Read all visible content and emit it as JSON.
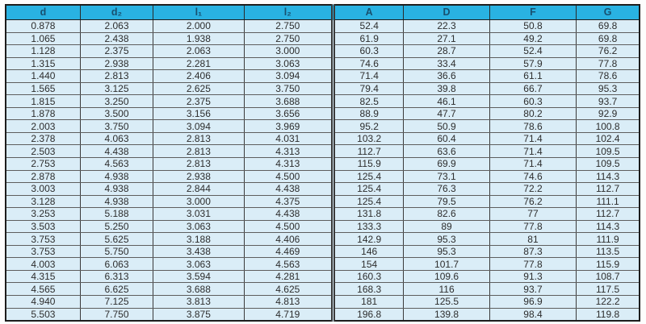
{
  "chart_data": {
    "type": "table",
    "columns": [
      "d",
      "d₂",
      "l₁",
      "l₂",
      "A",
      "D",
      "F",
      "G"
    ],
    "rows": [
      [
        "0.878",
        "2.063",
        "2.000",
        "2.750",
        "52.4",
        "22.3",
        "50.8",
        "69.8"
      ],
      [
        "1.065",
        "2.438",
        "1.938",
        "2.750",
        "61.9",
        "27.1",
        "49.2",
        "69.8"
      ],
      [
        "1.128",
        "2.375",
        "2.063",
        "3.000",
        "60.3",
        "28.7",
        "52.4",
        "76.2"
      ],
      [
        "1.315",
        "2.938",
        "2.281",
        "3.063",
        "74.6",
        "33.4",
        "57.9",
        "77.8"
      ],
      [
        "1.440",
        "2.813",
        "2.406",
        "3.094",
        "71.4",
        "36.6",
        "61.1",
        "78.6"
      ],
      [
        "1.565",
        "3.125",
        "2.625",
        "3.750",
        "79.4",
        "39.8",
        "66.7",
        "95.3"
      ],
      [
        "1.815",
        "3.250",
        "2.375",
        "3.688",
        "82.5",
        "46.1",
        "60.3",
        "93.7"
      ],
      [
        "1.878",
        "3.500",
        "3.156",
        "3.656",
        "88.9",
        "47.7",
        "80.2",
        "92.9"
      ],
      [
        "2.003",
        "3.750",
        "3.094",
        "3.969",
        "95.2",
        "50.9",
        "78.6",
        "100.8"
      ],
      [
        "2.378",
        "4.063",
        "2.813",
        "4.031",
        "103.2",
        "60.4",
        "71.4",
        "102.4"
      ],
      [
        "2.503",
        "4.438",
        "2.813",
        "4.313",
        "112.7",
        "63.6",
        "71.4",
        "109.5"
      ],
      [
        "2.753",
        "4.563",
        "2.813",
        "4.313",
        "115.9",
        "69.9",
        "71.4",
        "109.5"
      ],
      [
        "2.878",
        "4.938",
        "2.938",
        "4.500",
        "125.4",
        "73.1",
        "74.6",
        "114.3"
      ],
      [
        "3.003",
        "4.938",
        "2.844",
        "4.438",
        "125.4",
        "76.3",
        "72.2",
        "112.7"
      ],
      [
        "3.128",
        "4.938",
        "3.000",
        "4.375",
        "125.4",
        "79.5",
        "76.2",
        "111.1"
      ],
      [
        "3.253",
        "5.188",
        "3.031",
        "4.438",
        "131.8",
        "82.6",
        "77",
        "112.7"
      ],
      [
        "3.503",
        "5.250",
        "3.063",
        "4.500",
        "133.3",
        "89",
        "77.8",
        "114.3"
      ],
      [
        "3.753",
        "5.625",
        "3.188",
        "4.406",
        "142.9",
        "95.3",
        "81",
        "111.9"
      ],
      [
        "3.753",
        "5.750",
        "3.438",
        "4.469",
        "146",
        "95.3",
        "87.3",
        "113.5"
      ],
      [
        "4.003",
        "6.063",
        "3.063",
        "4.563",
        "154",
        "101.7",
        "77.8",
        "115.9"
      ],
      [
        "4.315",
        "6.313",
        "3.594",
        "4.281",
        "160.3",
        "109.6",
        "91.3",
        "108.7"
      ],
      [
        "4.565",
        "6.625",
        "3.688",
        "4.625",
        "168.3",
        "116",
        "93.7",
        "117.5"
      ],
      [
        "4.940",
        "7.125",
        "3.813",
        "4.813",
        "181",
        "125.5",
        "96.9",
        "122.2"
      ],
      [
        "5.503",
        "7.750",
        "3.875",
        "4.719",
        "196.8",
        "139.8",
        "98.4",
        "119.8"
      ]
    ],
    "layout": {
      "legend": "none",
      "grid": "on",
      "header_bg": "#29b2e2",
      "header_text_color": "#18506f",
      "cell_bg": "#daedf7",
      "row_line_color": "#5e5e5e",
      "column_line_color": "#3a3a3a",
      "outer_border_color": "#1d1d1d",
      "double_divider_after_column": "l₂"
    }
  }
}
